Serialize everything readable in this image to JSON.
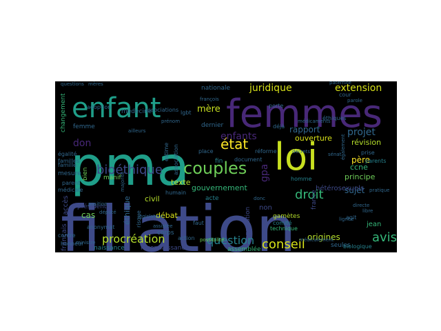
{
  "words": [
    {
      "text": "filiation",
      "color": "#3e4a89"
    },
    {
      "text": "pma",
      "color": "#1f9e89"
    },
    {
      "text": "femmes",
      "color": "#482878"
    },
    {
      "text": "loi",
      "color": "#c8e020"
    },
    {
      "text": "enfant",
      "color": "#1f9e89"
    },
    {
      "text": "couples",
      "color": "#6ece58"
    },
    {
      "text": "bioéthique",
      "color": "#3e4a89"
    },
    {
      "text": "procréation",
      "color": "#b5de2b"
    },
    {
      "text": "conseil",
      "color": "#d8e219"
    },
    {
      "text": "question",
      "color": "#26828e"
    },
    {
      "text": "avis",
      "color": "#35b779"
    },
    {
      "text": "droit",
      "color": "#35b779"
    },
    {
      "text": "juridique",
      "color": "#d8e219"
    },
    {
      "text": "extension",
      "color": "#d8e219"
    },
    {
      "text": "état",
      "color": "#fde725"
    },
    {
      "text": "enfants",
      "color": "#482878"
    },
    {
      "text": "mère",
      "color": "#c8e020"
    },
    {
      "text": "projet",
      "color": "#31688e"
    },
    {
      "text": "rapport",
      "color": "#31688e"
    },
    {
      "text": "ouverture",
      "color": "#d8e219"
    },
    {
      "text": "révision",
      "color": "#b5de2b"
    },
    {
      "text": "gpa",
      "color": "#482878"
    },
    {
      "text": "père",
      "color": "#fde725"
    },
    {
      "text": "don",
      "color": "#482878"
    },
    {
      "text": "texte",
      "color": "#b5de2b"
    },
    {
      "text": "gouvernement",
      "color": "#35b779"
    },
    {
      "text": "principe",
      "color": "#6ece58"
    },
    {
      "text": "sujet",
      "color": "#31688e"
    },
    {
      "text": "hétérosexuels",
      "color": "#3e4a89"
    },
    {
      "text": "ccne",
      "color": "#35b779"
    },
    {
      "text": "parents",
      "color": "#26828e"
    },
    {
      "text": "éthique",
      "color": "#31688e"
    },
    {
      "text": "débat",
      "color": "#d8e219"
    },
    {
      "text": "cas",
      "color": "#6ece58"
    },
    {
      "text": "président",
      "color": "#3e4a89"
    },
    {
      "text": "civil",
      "color": "#b5de2b"
    },
    {
      "text": "accès",
      "color": "#3e4a89"
    },
    {
      "text": "égalité",
      "color": "#31688e"
    },
    {
      "text": "origines",
      "color": "#b5de2b"
    },
    {
      "text": "jean",
      "color": "#35b779"
    },
    {
      "text": "français",
      "color": "#3e4a89"
    },
    {
      "text": "naissance",
      "color": "#26828e"
    },
    {
      "text": "reconnaissance",
      "color": "#3e4a89"
    },
    {
      "text": "assemblée",
      "color": "#35b779"
    },
    {
      "text": "seules",
      "color": "#31688e"
    },
    {
      "text": "biologique",
      "color": "#26828e"
    },
    {
      "text": "france",
      "color": "#3e4a89"
    },
    {
      "text": "non",
      "color": "#3e4a89"
    },
    {
      "text": "gestation",
      "color": "#3e4a89"
    },
    {
      "text": "gamètes",
      "color": "#b5de2b"
    },
    {
      "text": "technique",
      "color": "#35b779"
    },
    {
      "text": "comité",
      "color": "#26828e"
    },
    {
      "text": "acte",
      "color": "#26828e"
    },
    {
      "text": "homme",
      "color": "#26828e"
    },
    {
      "text": "fin",
      "color": "#26828e"
    },
    {
      "text": "document",
      "color": "#31688e"
    },
    {
      "text": "réforme",
      "color": "#31688e"
    },
    {
      "text": "association",
      "color": "#31688e"
    },
    {
      "text": "dernier",
      "color": "#31688e"
    },
    {
      "text": "nationale",
      "color": "#31688e"
    },
    {
      "text": "médecine",
      "color": "#31688e"
    },
    {
      "text": "adoption",
      "color": "#31688e"
    },
    {
      "text": "famille",
      "color": "#31688e"
    },
    {
      "text": "femme",
      "color": "#31688e"
    },
    {
      "text": "mesure",
      "color": "#31688e"
    },
    {
      "text": "parent",
      "color": "#31688e"
    },
    {
      "text": "familles",
      "color": "#31688e"
    },
    {
      "text": "médicale",
      "color": "#31688e"
    },
    {
      "text": "changement",
      "color": "#35b779"
    },
    {
      "text": "manif",
      "color": "#6ece58"
    },
    {
      "text": "bien",
      "color": "#6ece58"
    },
    {
      "text": "anonymat",
      "color": "#31688e"
    },
    {
      "text": "contre",
      "color": "#31688e"
    },
    {
      "text": "ministre",
      "color": "#31688e"
    },
    {
      "text": "corps",
      "color": "#31688e"
    },
    {
      "text": "action",
      "color": "#31688e"
    },
    {
      "text": "faut",
      "color": "#31688e"
    },
    {
      "text": "agit",
      "color": "#31688e"
    },
    {
      "text": "possibilité",
      "color": "#6ece58"
    },
    {
      "text": "cour",
      "color": "#31688e"
    },
    {
      "text": "parole",
      "color": "#31688e"
    },
    {
      "text": "porte",
      "color": "#31688e"
    },
    {
      "text": "françois",
      "color": "#31688e"
    },
    {
      "text": "questions",
      "color": "#31688e"
    },
    {
      "text": "mères",
      "color": "#31688e"
    },
    {
      "text": "risque",
      "color": "#31688e"
    },
    {
      "text": "estime",
      "color": "#31688e"
    },
    {
      "text": "place",
      "color": "#31688e"
    },
    {
      "text": "député",
      "color": "#31688e"
    },
    {
      "text": "humain",
      "color": "#31688e"
    },
    {
      "text": "législateur",
      "color": "#31688e"
    },
    {
      "text": "honneur",
      "color": "#31688e"
    },
    {
      "text": "assistée",
      "color": "#31688e"
    },
    {
      "text": "éthiques",
      "color": "#31688e"
    },
    {
      "text": "médicaments",
      "color": "#31688e"
    },
    {
      "text": "également",
      "color": "#31688e"
    },
    {
      "text": "prise",
      "color": "#31688e"
    },
    {
      "text": "associations",
      "color": "#31688e"
    },
    {
      "text": "lgbt",
      "color": "#31688e"
    },
    {
      "text": "majorité",
      "color": "#31688e"
    },
    {
      "text": "position",
      "color": "#31688e"
    },
    {
      "text": "déjà",
      "color": "#31688e"
    },
    {
      "text": "prénom",
      "color": "#31688e"
    },
    {
      "text": "décrets",
      "color": "#31688e"
    },
    {
      "text": "ailleurs",
      "color": "#31688e"
    },
    {
      "text": "médicalement",
      "color": "#31688e"
    },
    {
      "text": "pratique",
      "color": "#31688e"
    },
    {
      "text": "paternité",
      "color": "#31688e"
    },
    {
      "text": "directe",
      "color": "#31688e"
    },
    {
      "text": "donc",
      "color": "#31688e"
    },
    {
      "text": "sénat",
      "color": "#31688e"
    },
    {
      "text": "libre",
      "color": "#31688e"
    },
    {
      "text": "lignée",
      "color": "#31688e"
    }
  ]
}
